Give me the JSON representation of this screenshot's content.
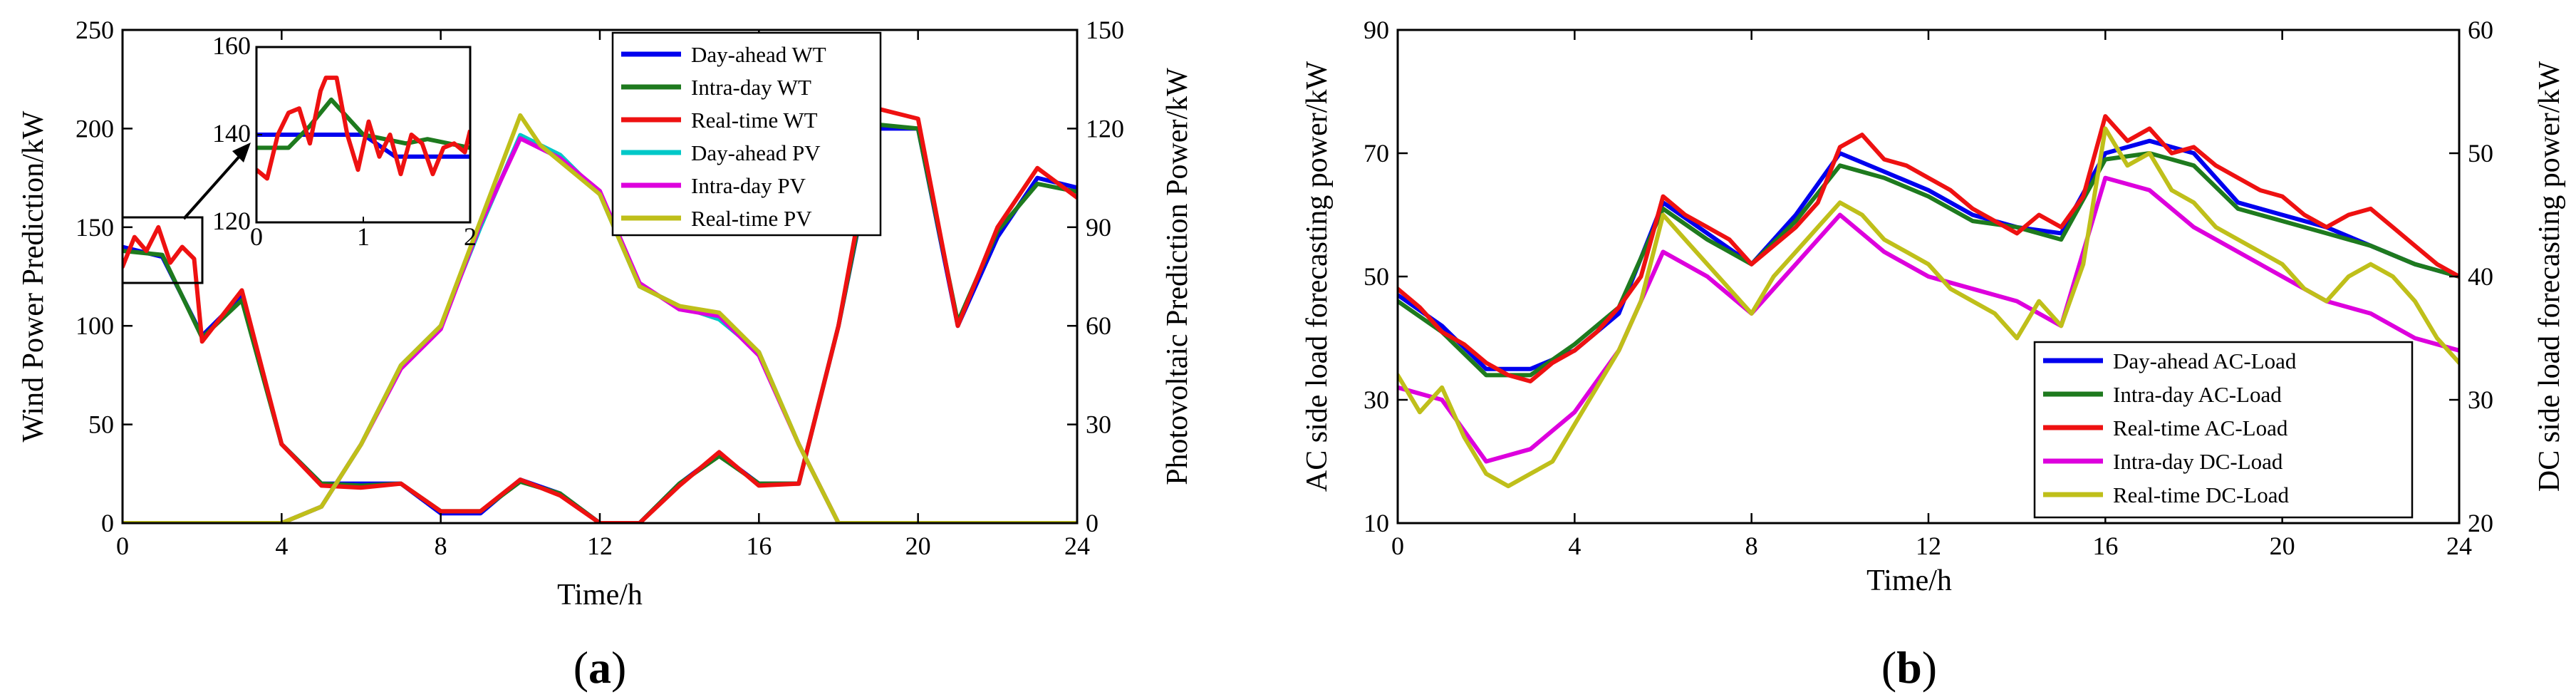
{
  "panels": [
    {
      "id": "a",
      "open": "(",
      "letter": "a",
      "close": ")"
    },
    {
      "id": "b",
      "open": "(",
      "letter": "b",
      "close": ")"
    }
  ],
  "colors": {
    "day_ahead": "#0000ee",
    "intra_day_wt": "#1e7a1e",
    "real_time": "#ee1111",
    "day_ahead_pv": "#00c8c8",
    "intra_day_pv": "#dd00dd",
    "real_time_pv": "#bfbf1a"
  },
  "chart_data": [
    {
      "id": "a",
      "type": "line",
      "xlabel": "Time/h",
      "ylabel_left": "Wind Power Prediction/kW",
      "ylabel_right": "Photovoltaic Prediction Power/kW",
      "xlim": [
        0,
        24
      ],
      "ylim_left": [
        0,
        250
      ],
      "ylim_right": [
        0,
        150
      ],
      "xticks": [
        "0",
        "4",
        "8",
        "12",
        "16",
        "20",
        "24"
      ],
      "yticks_left": [
        "0",
        "50",
        "100",
        "150",
        "200",
        "250"
      ],
      "yticks_right": [
        "0",
        "30",
        "60",
        "90",
        "120",
        "150"
      ],
      "legend_position": "top-right",
      "series": [
        {
          "name": "Day-ahead WT",
          "axis": "left",
          "color": "#0000ee",
          "x": [
            0,
            1,
            2,
            3,
            4,
            5,
            6,
            7,
            8,
            9,
            10,
            11,
            12,
            13,
            14,
            15,
            16,
            17,
            18,
            19,
            20,
            21,
            22,
            23,
            24
          ],
          "y": [
            140,
            135,
            95,
            115,
            40,
            20,
            20,
            20,
            5,
            5,
            22,
            15,
            0,
            0,
            20,
            35,
            20,
            20,
            100,
            200,
            200,
            100,
            145,
            175,
            170
          ]
        },
        {
          "name": "Intra-day WT",
          "axis": "left",
          "color": "#1e7a1e",
          "x": [
            0,
            1,
            2,
            3,
            4,
            5,
            6,
            7,
            8,
            9,
            10,
            11,
            12,
            13,
            14,
            15,
            16,
            17,
            18,
            19,
            20,
            21,
            22,
            23,
            24
          ],
          "y": [
            138,
            136,
            94,
            113,
            40,
            20,
            19,
            20,
            6,
            6,
            21,
            15,
            0,
            0,
            20,
            34,
            20,
            20,
            100,
            202,
            200,
            102,
            148,
            172,
            168
          ]
        },
        {
          "name": "Real-time WT",
          "axis": "left",
          "color": "#ee1111",
          "x": [
            0,
            0.3,
            0.6,
            0.9,
            1.2,
            1.5,
            1.8,
            2,
            3,
            4,
            5,
            6,
            7,
            8,
            9,
            10,
            11,
            12,
            13,
            14,
            15,
            16,
            17,
            18,
            19,
            20,
            21,
            22,
            23,
            24
          ],
          "y": [
            130,
            145,
            138,
            150,
            132,
            140,
            134,
            92,
            118,
            40,
            19,
            18,
            20,
            6,
            6,
            22,
            14,
            0,
            0,
            19,
            36,
            19,
            20,
            100,
            210,
            205,
            100,
            150,
            180,
            165
          ]
        },
        {
          "name": "Day-ahead PV",
          "axis": "right",
          "color": "#00c8c8",
          "x": [
            0,
            4,
            5,
            6,
            7,
            8,
            9,
            10,
            11,
            12,
            13,
            14,
            15,
            16,
            17,
            18,
            19,
            24
          ],
          "y": [
            0,
            0,
            5,
            24,
            48,
            60,
            90,
            118,
            112,
            100,
            72,
            66,
            62,
            52,
            24,
            0,
            0,
            0
          ]
        },
        {
          "name": "Intra-day PV",
          "axis": "right",
          "color": "#dd00dd",
          "x": [
            0,
            4,
            5,
            6,
            7,
            8,
            9,
            10,
            11,
            12,
            13,
            14,
            15,
            16,
            17,
            18,
            19,
            24
          ],
          "y": [
            0,
            0,
            5,
            24,
            47,
            59,
            91,
            117,
            111,
            101,
            73,
            65,
            63,
            51,
            24,
            0,
            0,
            0
          ]
        },
        {
          "name": "Real-time PV",
          "axis": "right",
          "color": "#bfbf1a",
          "x": [
            0,
            4,
            5,
            6,
            7,
            8,
            9,
            10,
            10.5,
            11,
            12,
            13,
            14,
            15,
            16,
            17,
            18,
            19,
            24
          ],
          "y": [
            0,
            0,
            5,
            24,
            48,
            60,
            92,
            124,
            115,
            110,
            100,
            72,
            66,
            64,
            52,
            24,
            0,
            0,
            0
          ]
        }
      ],
      "inset": {
        "xlim": [
          0,
          2
        ],
        "ylim": [
          120,
          160
        ],
        "xticks": [
          "0",
          "1",
          "2"
        ],
        "yticks": [
          "120",
          "140",
          "160"
        ],
        "series": [
          {
            "name": "Day-ahead WT",
            "color": "#0000ee",
            "x": [
              0,
              0.3,
              1,
              1.3,
              2
            ],
            "y": [
              140,
              140,
              140,
              135,
              135
            ]
          },
          {
            "name": "Intra-day WT",
            "color": "#1e7a1e",
            "x": [
              0,
              0.3,
              0.5,
              0.7,
              1,
              1.4,
              1.6,
              2
            ],
            "y": [
              137,
              137,
              142,
              148,
              140,
              138,
              139,
              137
            ]
          },
          {
            "name": "Real-time WT",
            "color": "#ee1111",
            "x": [
              0,
              0.1,
              0.2,
              0.3,
              0.4,
              0.5,
              0.6,
              0.65,
              0.75,
              0.85,
              0.95,
              1.05,
              1.15,
              1.25,
              1.35,
              1.45,
              1.55,
              1.65,
              1.75,
              1.85,
              1.95,
              2
            ],
            "y": [
              132,
              130,
              140,
              145,
              146,
              138,
              150,
              153,
              153,
              140,
              132,
              143,
              135,
              140,
              131,
              140,
              138,
              131,
              137,
              138,
              136,
              141
            ]
          }
        ]
      }
    },
    {
      "id": "b",
      "type": "line",
      "xlabel": "Time/h",
      "ylabel_left": "AC side load forecasting power/kW",
      "ylabel_right": "DC side load forecasting power/kW",
      "xlim": [
        0,
        24
      ],
      "ylim_left": [
        10,
        90
      ],
      "ylim_right": [
        20,
        60
      ],
      "xticks": [
        "0",
        "4",
        "8",
        "12",
        "16",
        "20",
        "24"
      ],
      "yticks_left": [
        "10",
        "30",
        "50",
        "70",
        "90"
      ],
      "yticks_right": [
        "20",
        "30",
        "40",
        "50",
        "60"
      ],
      "legend_position": "bottom-right",
      "series": [
        {
          "name": "Day-ahead AC-Load",
          "axis": "left",
          "color": "#0000ee",
          "x": [
            0,
            1,
            2,
            3,
            4,
            5,
            6,
            7,
            8,
            9,
            10,
            11,
            12,
            13,
            14,
            15,
            16,
            17,
            18,
            19,
            20,
            21,
            22,
            23,
            24
          ],
          "y": [
            47,
            42,
            35,
            35,
            38,
            44,
            62,
            57,
            52,
            60,
            70,
            67,
            64,
            60,
            58,
            57,
            70,
            72,
            70,
            62,
            60,
            58,
            55,
            52,
            50
          ]
        },
        {
          "name": "Intra-day AC-Load",
          "axis": "left",
          "color": "#1e7a1e",
          "x": [
            0,
            1,
            2,
            3,
            4,
            5,
            6,
            7,
            8,
            9,
            10,
            11,
            12,
            13,
            14,
            15,
            16,
            17,
            18,
            19,
            20,
            21,
            22,
            23,
            24
          ],
          "y": [
            46,
            41,
            34,
            34,
            39,
            45,
            61,
            56,
            52,
            59,
            68,
            66,
            63,
            59,
            58,
            56,
            69,
            70,
            68,
            61,
            59,
            57,
            55,
            52,
            50
          ]
        },
        {
          "name": "Real-time AC-Load",
          "axis": "left",
          "color": "#ee1111",
          "x": [
            0,
            0.5,
            1,
            1.5,
            2,
            2.5,
            3,
            3.5,
            4,
            4.5,
            5,
            5.5,
            6,
            6.5,
            7,
            7.5,
            8,
            8.5,
            9,
            9.5,
            10,
            10.5,
            11,
            11.5,
            12,
            12.5,
            13,
            13.5,
            14,
            14.5,
            15,
            15.5,
            16,
            16.5,
            17,
            17.5,
            18,
            18.5,
            19,
            19.5,
            20,
            20.5,
            21,
            21.5,
            22,
            22.5,
            23,
            23.5,
            24
          ],
          "y": [
            48,
            45,
            41,
            39,
            36,
            34,
            33,
            36,
            38,
            41,
            45,
            50,
            63,
            60,
            58,
            56,
            52,
            55,
            58,
            62,
            71,
            73,
            69,
            68,
            66,
            64,
            61,
            59,
            57,
            60,
            58,
            63,
            76,
            72,
            74,
            70,
            71,
            68,
            66,
            64,
            63,
            60,
            58,
            60,
            61,
            58,
            55,
            52,
            50
          ]
        },
        {
          "name": "Intra-day DC-Load",
          "axis": "right",
          "color": "#dd00dd",
          "x": [
            0,
            1,
            2,
            3,
            4,
            5,
            6,
            7,
            8,
            9,
            10,
            11,
            12,
            13,
            14,
            15,
            16,
            17,
            18,
            19,
            20,
            21,
            22,
            23,
            24
          ],
          "y": [
            31,
            30,
            25,
            26,
            29,
            34,
            42,
            40,
            37,
            41,
            45,
            42,
            40,
            39,
            38,
            36,
            48,
            47,
            44,
            42,
            40,
            38,
            37,
            35,
            34
          ]
        },
        {
          "name": "Real-time DC-Load",
          "axis": "right",
          "color": "#bfbf1a",
          "x": [
            0,
            0.5,
            1,
            1.5,
            2,
            2.5,
            3,
            3.5,
            4,
            4.5,
            5,
            5.5,
            6,
            6.5,
            7,
            7.5,
            8,
            8.5,
            9,
            9.5,
            10,
            10.5,
            11,
            11.5,
            12,
            12.5,
            13,
            13.5,
            14,
            14.5,
            15,
            15.5,
            16,
            16.5,
            17,
            17.5,
            18,
            18.5,
            19,
            19.5,
            20,
            20.5,
            21,
            21.5,
            22,
            22.5,
            23,
            23.5,
            24
          ],
          "y": [
            32,
            29,
            31,
            27,
            24,
            23,
            24,
            25,
            28,
            31,
            34,
            38,
            45,
            43,
            41,
            39,
            37,
            40,
            42,
            44,
            46,
            45,
            43,
            42,
            41,
            39,
            38,
            37,
            35,
            38,
            36,
            41,
            52,
            49,
            50,
            47,
            46,
            44,
            43,
            42,
            41,
            39,
            38,
            40,
            41,
            40,
            38,
            35,
            33
          ]
        }
      ]
    }
  ]
}
